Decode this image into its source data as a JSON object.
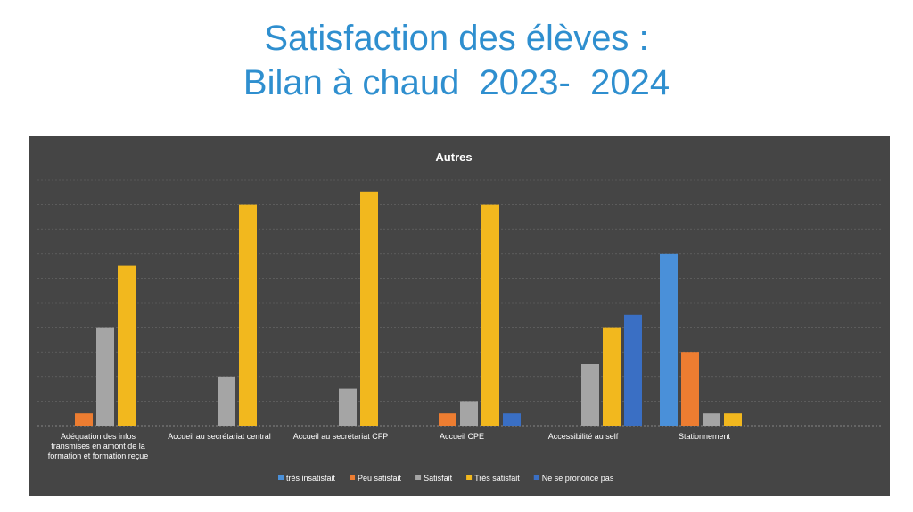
{
  "slide": {
    "title_line1": "Satisfaction des élèves :",
    "title_line2": "Bilan à chaud  2023-  2024"
  },
  "colors": {
    "title": "#2f8fcf",
    "panel": "#454545",
    "gridline": "#6a6a6a"
  },
  "chart_data": {
    "type": "bar",
    "title": "Autres",
    "xlabel": "",
    "ylabel": "",
    "ylim": [
      0,
      20
    ],
    "grid": true,
    "legend_position": "bottom",
    "categories": [
      [
        "Adéquation des infos",
        "transmises en amont de la",
        "formation et formation reçue"
      ],
      [
        "Accueil au secrétariat central"
      ],
      [
        "Accueil au secrétariat CFP"
      ],
      [
        "Accueil CPE"
      ],
      [
        "Accessibilité au self"
      ],
      [
        "Stationnement"
      ]
    ],
    "series": [
      {
        "name": "très insatisfait",
        "color": "#4a90d9",
        "values": [
          0,
          0,
          0,
          0,
          0,
          14
        ]
      },
      {
        "name": "Peu satisfait",
        "color": "#ed7d31",
        "values": [
          1,
          0,
          0,
          1,
          0,
          6
        ]
      },
      {
        "name": "Satisfait",
        "color": "#a5a5a5",
        "values": [
          8,
          4,
          3,
          2,
          5,
          1
        ]
      },
      {
        "name": "Très satisfait",
        "color": "#f2b81e",
        "values": [
          13,
          18,
          19,
          18,
          8,
          1
        ]
      },
      {
        "name": "Ne se prononce pas",
        "color": "#3a6fc4",
        "values": [
          0,
          0,
          0,
          1,
          9,
          0
        ]
      }
    ]
  }
}
